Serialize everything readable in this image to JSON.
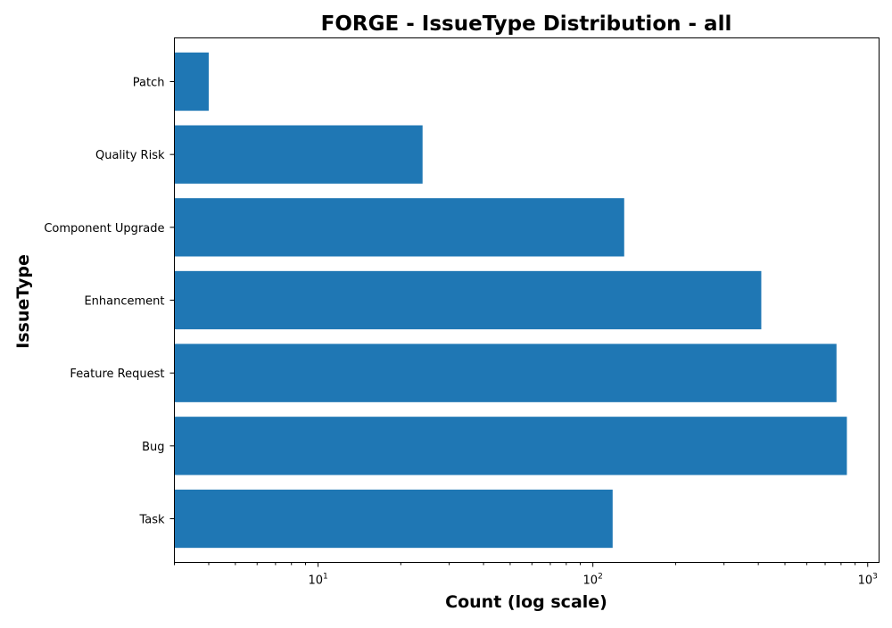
{
  "chart_data": {
    "type": "bar",
    "orientation": "horizontal",
    "title": "FORGE - IssueType Distribution - all",
    "xlabel": "Count (log scale)",
    "ylabel": "IssueType",
    "xscale": "log",
    "xlim": [
      3.0,
      1100
    ],
    "xticks": [
      {
        "value": 10,
        "base": "10",
        "exp": "1"
      },
      {
        "value": 100,
        "base": "10",
        "exp": "2"
      },
      {
        "value": 1000,
        "base": "10",
        "exp": "3"
      }
    ],
    "categories": [
      "Patch",
      "Quality Risk",
      "Component Upgrade",
      "Enhancement",
      "Feature Request",
      "Bug",
      "Task"
    ],
    "values": [
      4,
      24,
      130,
      410,
      770,
      840,
      118
    ],
    "bar_color": "#1f77b4",
    "grid": false,
    "legend": "none"
  }
}
